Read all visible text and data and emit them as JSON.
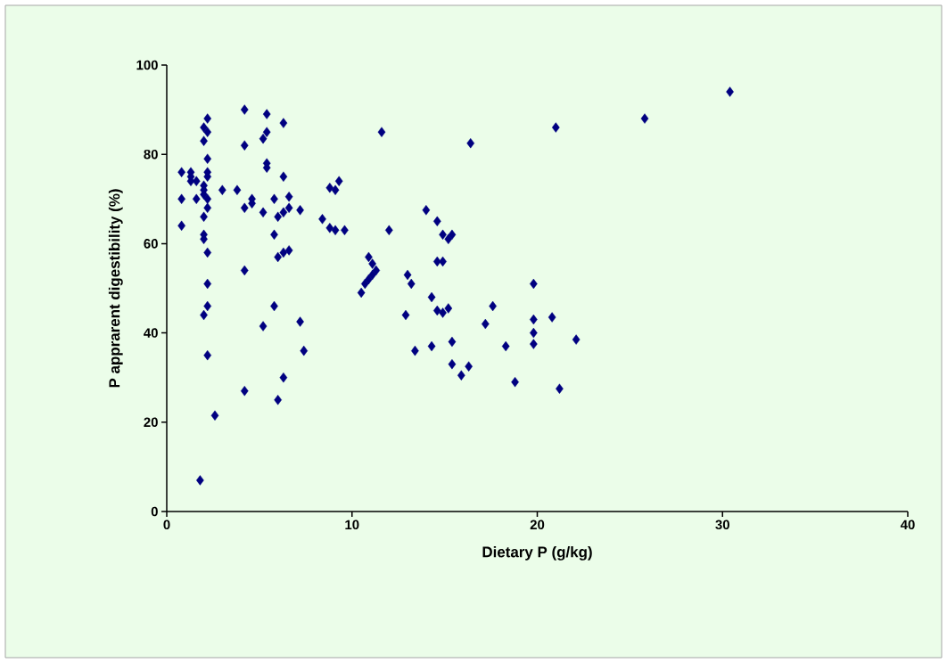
{
  "chart_data": {
    "type": "scatter",
    "xlabel": "Dietary P (g/kg)",
    "ylabel": "P apprarent digestibility (%)",
    "x": [
      0.8,
      0.8,
      0.8,
      1.3,
      1.3,
      1.3,
      1.6,
      1.6,
      1.8,
      2.0,
      2.0,
      2.0,
      2.0,
      2.0,
      2.0,
      2.0,
      2.0,
      2.0,
      2.2,
      2.2,
      2.2,
      2.2,
      2.2,
      2.2,
      2.2,
      2.2,
      2.2,
      2.2,
      2.2,
      2.6,
      3.0,
      3.8,
      4.2,
      4.2,
      4.2,
      4.2,
      4.2,
      4.6,
      4.6,
      5.2,
      5.2,
      5.2,
      5.4,
      5.4,
      5.4,
      5.4,
      5.8,
      5.8,
      5.8,
      6.0,
      6.0,
      6.0,
      6.3,
      6.3,
      6.3,
      6.3,
      6.3,
      6.6,
      6.6,
      6.6,
      7.2,
      7.2,
      7.4,
      8.4,
      8.8,
      8.8,
      9.1,
      9.1,
      9.3,
      9.6,
      10.5,
      10.7,
      10.9,
      10.9,
      11.1,
      11.1,
      11.3,
      11.6,
      12.0,
      12.9,
      13.0,
      13.2,
      13.4,
      14.0,
      14.3,
      14.3,
      14.6,
      14.6,
      14.6,
      14.9,
      14.9,
      14.9,
      15.2,
      15.2,
      15.4,
      15.4,
      15.4,
      15.9,
      16.3,
      16.4,
      17.2,
      17.6,
      18.3,
      18.8,
      19.8,
      19.8,
      19.8,
      19.8,
      20.8,
      21.0,
      21.2,
      22.1,
      25.8,
      30.4
    ],
    "values": [
      70,
      64,
      76,
      76,
      74,
      75,
      70,
      74,
      7,
      86,
      83,
      73,
      72,
      71,
      61,
      62,
      44,
      66,
      88,
      85,
      79,
      76,
      75,
      70,
      68,
      58,
      51,
      46,
      35,
      21.5,
      72,
      72,
      90,
      82,
      68,
      54,
      27,
      70,
      69,
      41.5,
      67,
      83.5,
      89,
      85,
      78,
      77,
      62,
      70,
      46,
      57,
      66,
      25,
      87,
      75,
      67,
      58,
      30,
      70.5,
      68,
      58.5,
      67.5,
      42.5,
      36,
      65.5,
      72.5,
      63.5,
      72,
      63,
      74,
      63,
      49,
      51,
      57,
      52,
      55.5,
      53,
      54,
      85,
      63,
      44,
      53,
      51,
      36,
      67.5,
      48,
      37,
      56,
      45,
      65,
      62,
      56,
      44.5,
      61,
      45.5,
      62,
      38,
      33,
      30.5,
      32.5,
      82.5,
      42,
      46,
      37,
      29,
      51,
      43,
      40,
      37.5,
      43.5,
      86,
      27.5,
      38.5,
      88,
      94
    ],
    "color": "#000080",
    "marker": "diamond",
    "xlim": [
      0,
      40
    ],
    "ylim": [
      0,
      100
    ],
    "xticks": [
      0,
      10,
      20,
      30,
      40
    ],
    "yticks": [
      0,
      20,
      40,
      60,
      80,
      100
    ]
  }
}
